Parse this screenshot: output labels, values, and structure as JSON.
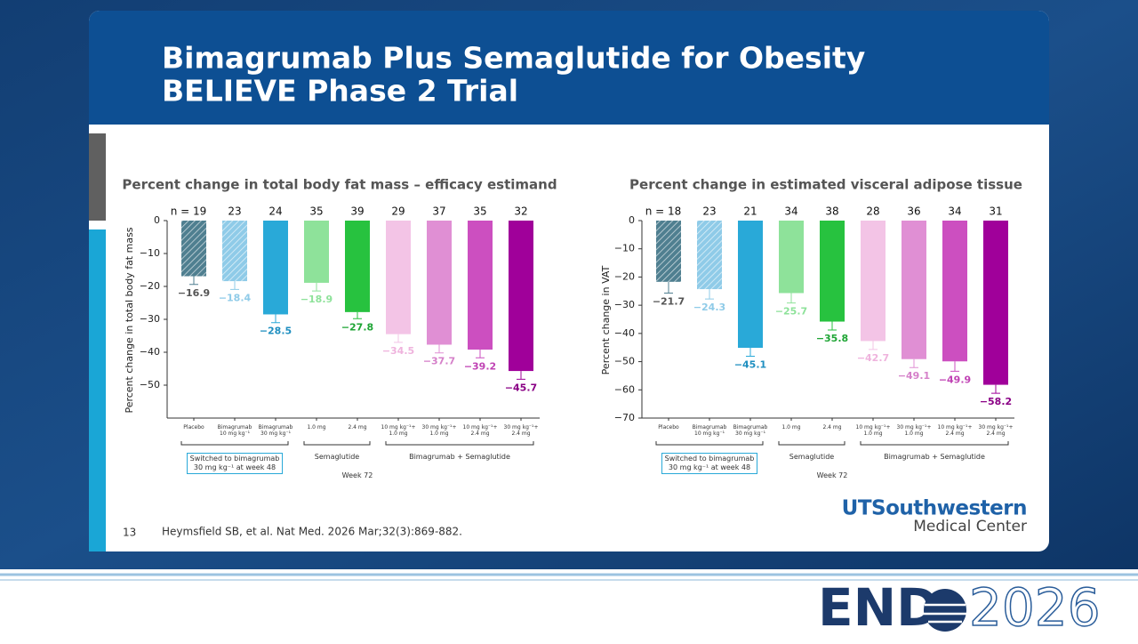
{
  "slide": {
    "title_lines": [
      "Bimagrumab Plus Semaglutide for Obesity",
      "BELIEVE Phase 2 Trial"
    ],
    "page_number": "13",
    "citation": "Heymsfield SB, et al. Nat Med. 2026 Mar;32(3):869-882.",
    "institution": "UTSouthwestern",
    "institution_sub": "Medical Center",
    "event_name": "END",
    "event_year": "2026"
  },
  "chart_data": [
    {
      "type": "bar",
      "title": "Percent change in total body fat mass – efficacy estimand",
      "y_label": "Percent change in total body fat mass",
      "categories": [
        "Placebo",
        "Bimagrumab\n10 mg kg⁻¹",
        "Bimagrumab\n30 mg kg⁻¹",
        "1.0 mg",
        "2.4 mg",
        "10 mg kg⁻¹+\n1.0 mg",
        "30 mg kg⁻¹+\n1.0 mg",
        "10 mg kg⁻¹+\n2.4 mg",
        "30 mg kg⁻¹+\n2.4 mg"
      ],
      "n_labels": [
        "n = 19",
        "23",
        "24",
        "35",
        "39",
        "29",
        "37",
        "35",
        "32"
      ],
      "values": [
        -16.9,
        -18.4,
        -28.5,
        -18.9,
        -27.8,
        -34.5,
        -37.7,
        -39.2,
        -45.7
      ],
      "value_labels": [
        "−16.9",
        "−18.4",
        "−28.5",
        "−18.9",
        "−27.8",
        "−34.5",
        "−37.7",
        "−39.2",
        "−45.7"
      ],
      "errors": [
        2.5,
        2.5,
        2.5,
        2.5,
        2,
        2.5,
        2.5,
        2.5,
        2.5
      ],
      "colors": [
        "#4f7f90",
        "#8fcbe8",
        "#29a9d8",
        "#8ee29a",
        "#27c23f",
        "#f3c4e6",
        "#e08fd4",
        "#cc4fc0",
        "#a0009a"
      ],
      "value_label_colors": [
        "#555555",
        "#8fcbe8",
        "#1f8fc0",
        "#8ee29a",
        "#1fa535",
        "#efb3dd",
        "#d580c9",
        "#c043b4",
        "#8a0085"
      ],
      "hatched": [
        true,
        true,
        false,
        false,
        false,
        false,
        false,
        false,
        false
      ],
      "group_labels": [
        "Switched to bimagrumab\n30 mg kg⁻¹ at week 48",
        "Semaglutide",
        "Bimagrumab + Semaglutide"
      ],
      "x_label": "Week 72",
      "ylim": [
        -60,
        0
      ],
      "yticks": [
        {
          "value": 0,
          "label": "0"
        },
        {
          "value": -10,
          "label": "−10"
        },
        {
          "value": -20,
          "label": "−20"
        },
        {
          "value": -30,
          "label": "−30"
        },
        {
          "value": -40,
          "label": "−40"
        },
        {
          "value": -50,
          "label": "−50"
        }
      ]
    },
    {
      "type": "bar",
      "title": "Percent change in estimated visceral adipose tissue",
      "y_label": "Percent change in VAT",
      "categories": [
        "Placebo",
        "Bimagrumab\n10 mg kg⁻¹",
        "Bimagrumab\n30 mg kg⁻¹",
        "1.0 mg",
        "2.4 mg",
        "10 mg kg⁻¹+\n1.0 mg",
        "30 mg kg⁻¹+\n1.0 mg",
        "10 mg kg⁻¹+\n2.4 mg",
        "30 mg kg⁻¹+\n2.4 mg"
      ],
      "n_labels": [
        "n = 18",
        "23",
        "21",
        "34",
        "38",
        "28",
        "36",
        "34",
        "31"
      ],
      "values": [
        -21.7,
        -24.3,
        -45.1,
        -25.7,
        -35.8,
        -42.7,
        -49.1,
        -49.9,
        -58.2
      ],
      "value_labels": [
        "−21.7",
        "−24.3",
        "−45.1",
        "−25.7",
        "−35.8",
        "−42.7",
        "−49.1",
        "−49.9",
        "−58.2"
      ],
      "errors": [
        4,
        3.5,
        3,
        3.5,
        3,
        3,
        3,
        3.5,
        3
      ],
      "colors": [
        "#4f7f90",
        "#8fcbe8",
        "#29a9d8",
        "#8ee29a",
        "#27c23f",
        "#f3c4e6",
        "#e08fd4",
        "#cc4fc0",
        "#a0009a"
      ],
      "value_label_colors": [
        "#555555",
        "#8fcbe8",
        "#1f8fc0",
        "#8ee29a",
        "#1fa535",
        "#efb3dd",
        "#d580c9",
        "#c043b4",
        "#8a0085"
      ],
      "hatched": [
        true,
        true,
        false,
        false,
        false,
        false,
        false,
        false,
        false
      ],
      "group_labels": [
        "Switched to bimagrumab\n30 mg kg⁻¹ at week 48",
        "Semaglutide",
        "Bimagrumab + Semaglutide"
      ],
      "x_label": "Week 72",
      "ylim": [
        -70,
        0
      ],
      "yticks": [
        {
          "value": 0,
          "label": "0"
        },
        {
          "value": -10,
          "label": "−10"
        },
        {
          "value": -20,
          "label": "−20"
        },
        {
          "value": -30,
          "label": "−30"
        },
        {
          "value": -40,
          "label": "−40"
        },
        {
          "value": -50,
          "label": "−50"
        },
        {
          "value": -60,
          "label": "−60"
        },
        {
          "value": -70,
          "label": "−70"
        }
      ]
    }
  ]
}
